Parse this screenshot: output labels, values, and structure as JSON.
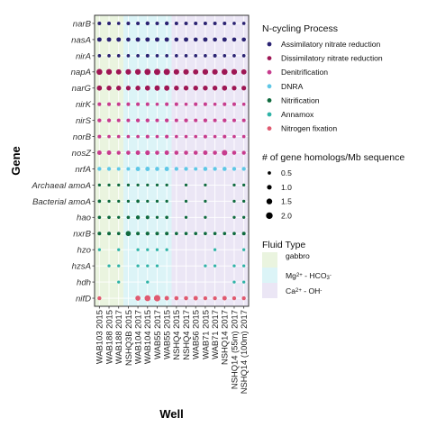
{
  "chart_data": {
    "type": "scatter",
    "xlabel": "Well",
    "ylabel": "Gene",
    "wells": [
      "WAB103 2015",
      "WAB188 2015",
      "WAB188 2017",
      "NSHQ3B 2015",
      "WAB104 2017",
      "WAB104 2015",
      "WAB55 2017",
      "WAB55 2015",
      "NSHQ4 2015",
      "NSHQ4 2017",
      "WAB56 2015",
      "WAB71 2015",
      "WAB71 2017",
      "NSHQ14 2017",
      "NSHQ14 (55m) 2017",
      "NSHQ14 (100m) 2017"
    ],
    "genes": [
      "narB",
      "nasA",
      "nirA",
      "napA",
      "narG",
      "nirK",
      "nirS",
      "norB",
      "nosZ",
      "nrfA",
      "Archaeal amoA",
      "Bacterial amoA",
      "hao",
      "nxrB",
      "hzo",
      "hzsA",
      "hdh",
      "nifD"
    ],
    "gene_process": {
      "narB": "Assimilatory nitrate reduction",
      "nasA": "Assimilatory nitrate reduction",
      "nirA": "Assimilatory nitrate reduction",
      "napA": "Dissimilatory nitrate reduction",
      "narG": "Dissimilatory nitrate reduction",
      "nirK": "Denitrification",
      "nirS": "Denitrification",
      "norB": "Denitrification",
      "nosZ": "Denitrification",
      "nrfA": "DNRA",
      "Archaeal amoA": "Nitrification",
      "Bacterial amoA": "Nitrification",
      "hao": "Nitrification",
      "nxrB": "Nitrification",
      "hzo": "Annamox",
      "hzsA": "Annamox",
      "hdh": "Annamox",
      "nifD": "Nitrogen fixation"
    },
    "values": {
      "narB": [
        0.6,
        0.6,
        0.5,
        0.6,
        0.6,
        0.7,
        0.6,
        0.7,
        0.6,
        0.6,
        0.6,
        0.6,
        0.6,
        0.6,
        0.5,
        0.5
      ],
      "nasA": [
        0.9,
        0.9,
        0.9,
        0.8,
        0.9,
        0.9,
        0.9,
        0.9,
        0.8,
        0.9,
        0.8,
        0.9,
        0.8,
        0.9,
        0.8,
        0.8
      ],
      "nirA": [
        0.5,
        0.5,
        0.5,
        0.5,
        0.5,
        0.6,
        0.5,
        0.5,
        0.5,
        0.5,
        0.5,
        0.5,
        0.6,
        0.5,
        0.5,
        0.5
      ],
      "napA": [
        1.6,
        1.5,
        1.3,
        1.4,
        1.5,
        1.7,
        1.8,
        1.8,
        1.4,
        1.4,
        1.3,
        1.5,
        1.4,
        1.6,
        1.5,
        1.3
      ],
      "narG": [
        1.2,
        1.1,
        1.1,
        1.0,
        1.1,
        1.2,
        1.3,
        1.3,
        1.1,
        1.1,
        1.1,
        1.1,
        1.1,
        1.2,
        1.0,
        1.0
      ],
      "nirK": [
        0.6,
        0.6,
        0.6,
        0.6,
        0.6,
        0.6,
        0.5,
        0.6,
        0.6,
        0.5,
        0.6,
        0.6,
        0.5,
        0.6,
        0.6,
        0.5
      ],
      "nirS": [
        0.7,
        0.7,
        0.6,
        0.6,
        0.7,
        0.7,
        0.6,
        0.7,
        0.6,
        0.7,
        0.6,
        0.7,
        0.6,
        0.7,
        0.6,
        0.6
      ],
      "norB": [
        0.6,
        0.5,
        0.5,
        0.5,
        0.5,
        0.6,
        0.5,
        0.6,
        0.5,
        0.5,
        0.5,
        0.6,
        0.5,
        0.6,
        0.5,
        0.5
      ],
      "nosZ": [
        0.9,
        0.9,
        0.7,
        0.8,
        0.9,
        1.0,
        0.8,
        0.9,
        0.8,
        0.8,
        0.8,
        0.9,
        0.8,
        1.4,
        0.8,
        0.7
      ],
      "nrfA": [
        0.7,
        0.7,
        0.6,
        0.6,
        0.9,
        0.9,
        0.8,
        0.9,
        0.7,
        0.7,
        0.6,
        0.8,
        0.7,
        0.8,
        0.7,
        0.7
      ],
      "Archaeal amoA": [
        0.4,
        0.4,
        0.4,
        0.4,
        0.4,
        0.4,
        0.4,
        0.4,
        0,
        0.4,
        0,
        0.4,
        0,
        0,
        0.4,
        0.4
      ],
      "Bacterial amoA": [
        0.5,
        0.4,
        0.4,
        0.4,
        0.5,
        0.4,
        0.4,
        0.4,
        0,
        0.4,
        0,
        0.4,
        0,
        0,
        0.4,
        0.4
      ],
      "hao": [
        0.5,
        0.5,
        0.4,
        0.5,
        0.7,
        0.6,
        0.4,
        0.5,
        0,
        0.4,
        0,
        0.4,
        0,
        0,
        0.4,
        0.4
      ],
      "nxrB": [
        0.6,
        0.6,
        0.5,
        1.2,
        0.6,
        0.7,
        0.6,
        0.6,
        0.5,
        0.5,
        0.5,
        0.5,
        0.5,
        0.5,
        0.5,
        0.6
      ],
      "hzo": [
        0.4,
        0,
        0.4,
        0,
        0.4,
        0.4,
        0.4,
        0.4,
        0,
        0,
        0,
        0,
        0.4,
        0,
        0,
        0.4
      ],
      "hzsA": [
        0,
        0.4,
        0.4,
        0,
        0.4,
        0.4,
        0.4,
        0,
        0,
        0,
        0,
        0.4,
        0.4,
        0,
        0.4,
        0.4
      ],
      "hdh": [
        0,
        0,
        0.4,
        0,
        0,
        0.4,
        0,
        0,
        0,
        0,
        0,
        0,
        0,
        0,
        0.4,
        0.4
      ],
      "nifD": [
        0.7,
        0,
        0,
        0,
        1.2,
        1.6,
        1.9,
        0.9,
        0.8,
        0.8,
        0.9,
        0.7,
        0.7,
        0.9,
        0.7,
        0.7
      ]
    },
    "process_legend": {
      "title": "N-cycling Process",
      "items": [
        {
          "name": "Assimilatory nitrate reduction",
          "color": "#2a2272"
        },
        {
          "name": "Dissimilatory nitrate reduction",
          "color": "#9e1654"
        },
        {
          "name": "Denitrification",
          "color": "#c73c8e"
        },
        {
          "name": "DNRA",
          "color": "#5fc7e6"
        },
        {
          "name": "Nitrification",
          "color": "#0f6a3e"
        },
        {
          "name": "Annamox",
          "color": "#2fb3a7"
        },
        {
          "name": "Nitrogen fixation",
          "color": "#e05a70"
        }
      ]
    },
    "size_legend": {
      "title": "# of gene homologs/Mb sequence",
      "values": [
        0.5,
        1.0,
        1.5,
        2.0
      ],
      "labels": [
        "0.5",
        "1.0",
        "1.5",
        "2.0"
      ]
    },
    "fluid_legend": {
      "title": "Fluid Type",
      "items": [
        {
          "label_parts": [
            {
              "t": "gabbro",
              "s": ""
            }
          ],
          "color": "#eaf4df"
        },
        {
          "label_parts": [
            {
              "t": "Mg",
              "s": ""
            },
            {
              "t": "2+",
              "s": "sup"
            },
            {
              "t": " - HCO",
              "s": ""
            },
            {
              "t": "3",
              "s": "sub"
            },
            {
              "t": "-",
              "s": "sup"
            }
          ],
          "color": "#dcf4f7"
        },
        {
          "label_parts": [
            {
              "t": "Ca",
              "s": ""
            },
            {
              "t": "2+",
              "s": "sup"
            },
            {
              "t": " - OH",
              "s": ""
            },
            {
              "t": "-",
              "s": "sup"
            }
          ],
          "color": "#ebe6f5"
        }
      ]
    },
    "fluid_bands": [
      {
        "type": "gabbro",
        "from_well": 0,
        "to_well": 2
      },
      {
        "type": "Mg-HCO3",
        "from_well": 3,
        "to_well": 7
      },
      {
        "type": "Ca-OH",
        "from_well": 8,
        "to_well": 15
      }
    ],
    "grid": true
  }
}
